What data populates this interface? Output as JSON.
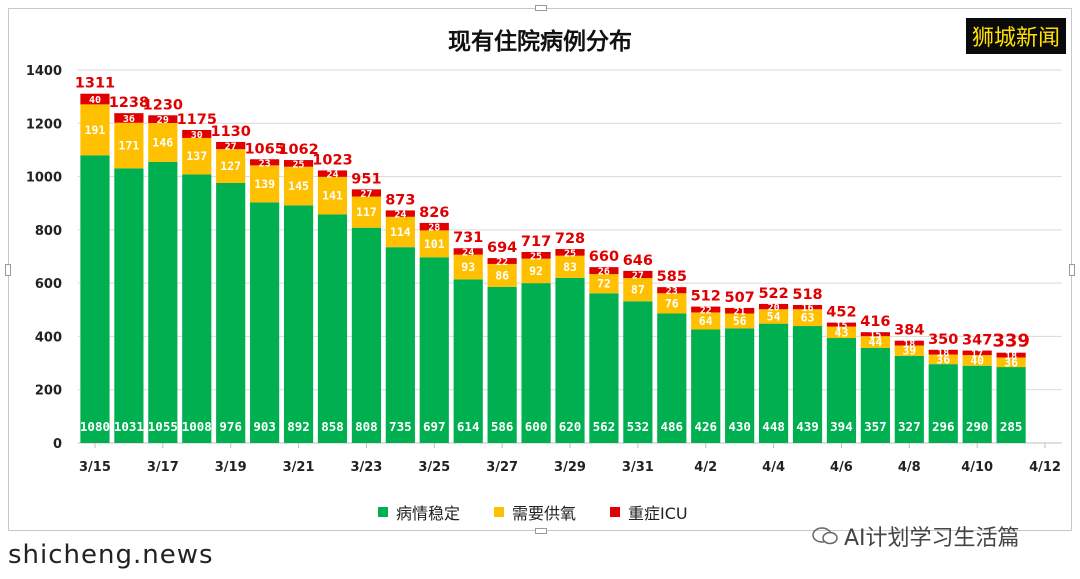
{
  "brand": "狮城新闻",
  "watermark": "shicheng.news",
  "wechat_account": "AI计划学习生活篇",
  "chart_data": {
    "type": "bar",
    "stacked": true,
    "title": "现有住院病例分布",
    "xlabel": "",
    "ylabel": "",
    "ylim": [
      0,
      1400
    ],
    "yticks": [
      0,
      200,
      400,
      600,
      800,
      1000,
      1200,
      1400
    ],
    "grid": true,
    "legend_position": "bottom",
    "x_tick_labels": [
      "3/15",
      "3/17",
      "3/19",
      "3/21",
      "3/23",
      "3/25",
      "3/27",
      "3/29",
      "3/31",
      "4/2",
      "4/4",
      "4/6",
      "4/8",
      "4/10",
      "4/12"
    ],
    "categories": [
      "3/15",
      "3/16",
      "3/17",
      "3/18",
      "3/19",
      "3/20",
      "3/21",
      "3/22",
      "3/23",
      "3/24",
      "3/25",
      "3/26",
      "3/27",
      "3/28",
      "3/29",
      "3/30",
      "3/31",
      "4/1",
      "4/2",
      "4/3",
      "4/4",
      "4/5",
      "4/6",
      "4/7",
      "4/8",
      "4/9",
      "4/10",
      "4/11"
    ],
    "series": [
      {
        "name": "病情稳定",
        "color": "#00b050",
        "values": [
          1080,
          1031,
          1055,
          1008,
          976,
          903,
          892,
          858,
          808,
          735,
          697,
          614,
          586,
          600,
          620,
          562,
          532,
          486,
          426,
          430,
          448,
          439,
          394,
          357,
          327,
          296,
          290,
          285
        ]
      },
      {
        "name": "需要供氧",
        "color": "#ffc000",
        "values": [
          191,
          171,
          146,
          137,
          127,
          139,
          145,
          141,
          117,
          114,
          101,
          93,
          86,
          92,
          83,
          72,
          87,
          76,
          64,
          56,
          54,
          63,
          43,
          44,
          39,
          36,
          40,
          36
        ]
      },
      {
        "name": "重症ICU",
        "color": "#e00000",
        "values": [
          40,
          36,
          29,
          30,
          27,
          23,
          25,
          24,
          27,
          24,
          28,
          24,
          22,
          25,
          25,
          26,
          27,
          23,
          22,
          21,
          20,
          16,
          15,
          15,
          18,
          18,
          17,
          18
        ]
      }
    ],
    "totals": [
      1311,
      1238,
      1230,
      1175,
      1130,
      1065,
      1062,
      1023,
      951,
      873,
      826,
      731,
      694,
      717,
      728,
      660,
      646,
      585,
      512,
      507,
      522,
      518,
      452,
      416,
      384,
      350,
      347,
      339
    ],
    "total_color": "#e00000"
  }
}
